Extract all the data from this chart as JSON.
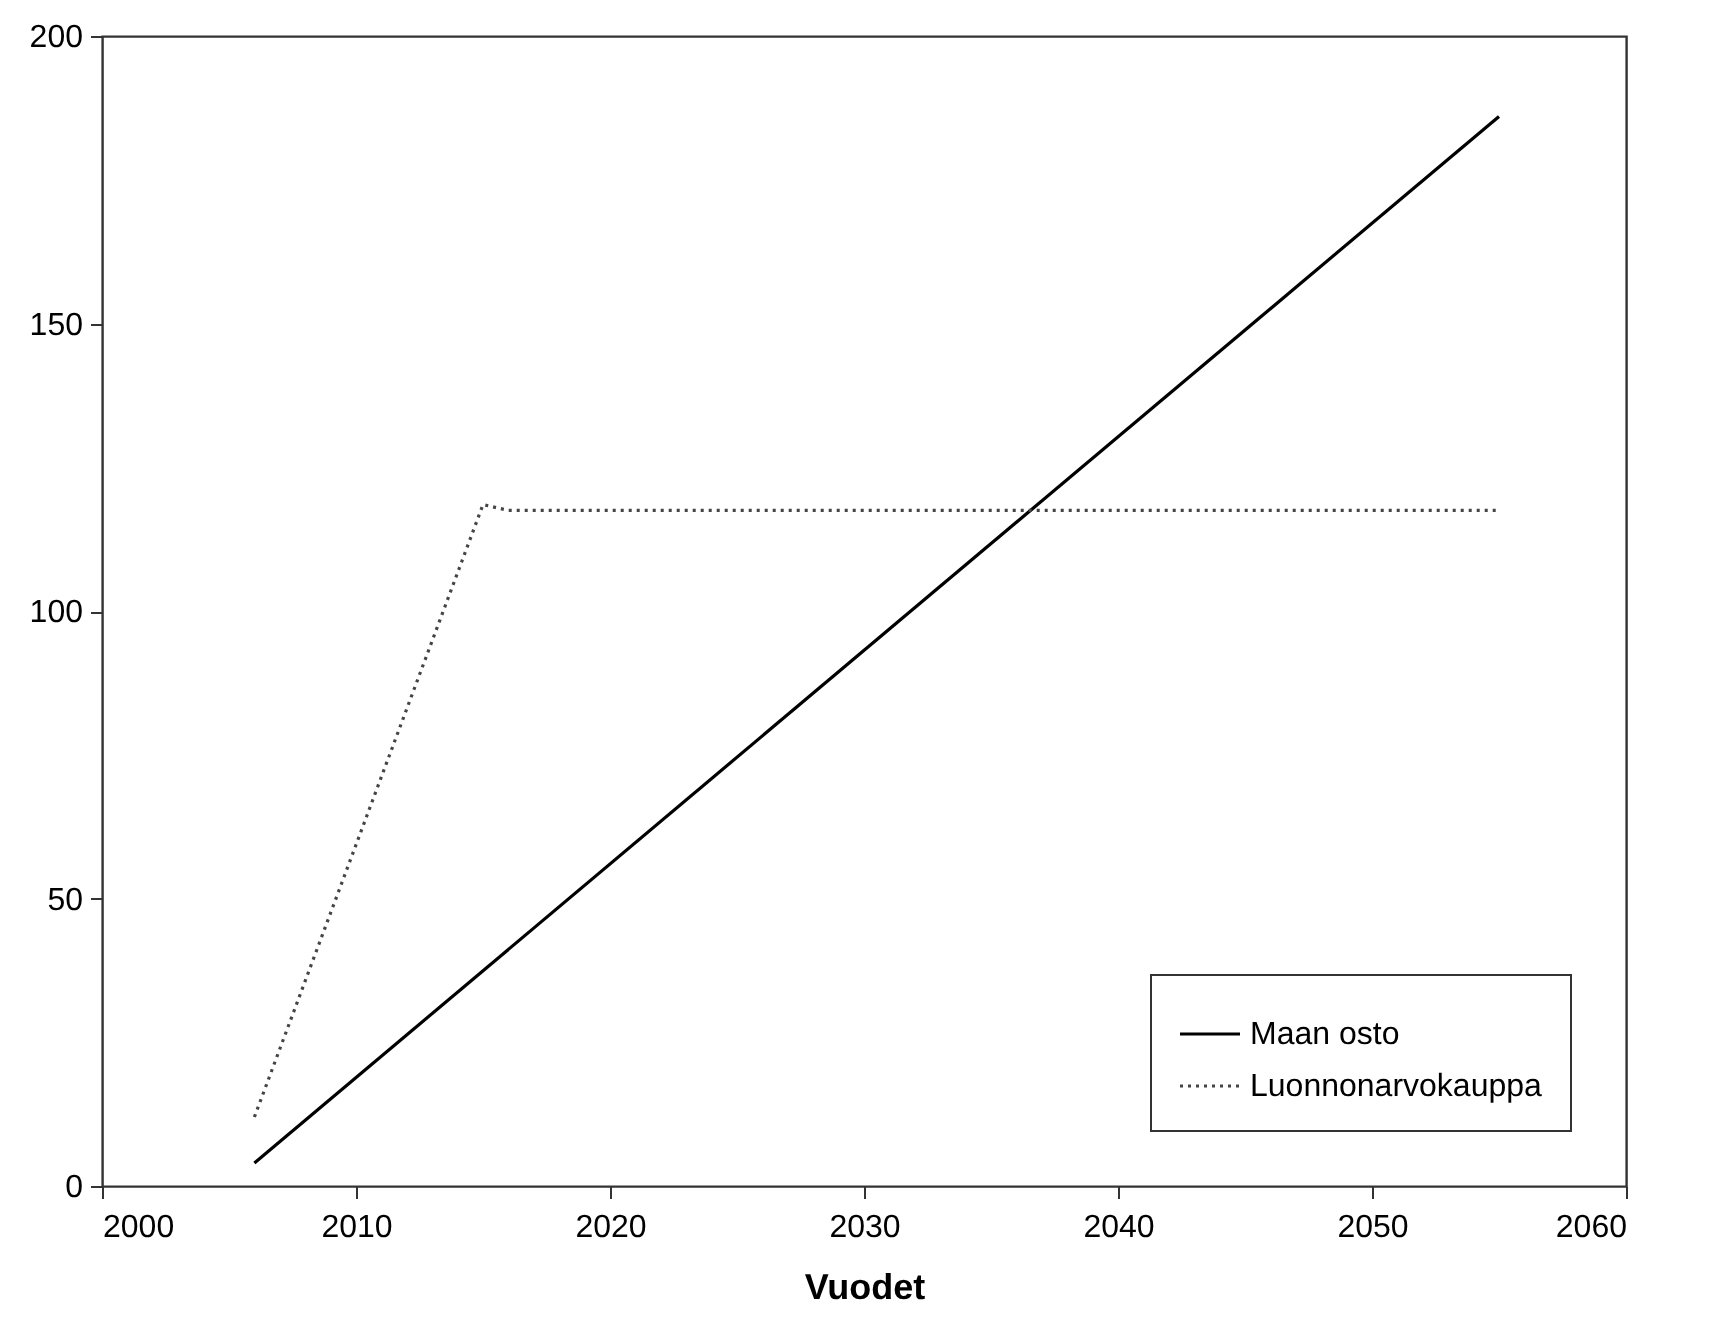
{
  "chart_data": {
    "type": "line",
    "xlabel": "Vuodet",
    "xlim": [
      2000,
      2060
    ],
    "xticks": [
      2000,
      2010,
      2020,
      2030,
      2040,
      2050,
      2060
    ],
    "ylim": [
      0,
      200
    ],
    "yticks": [
      0,
      50,
      100,
      150,
      200
    ],
    "grid": false,
    "legend": "bottom right",
    "marker": "none",
    "series": [
      {
        "name": "Maan osto",
        "color": "#000000",
        "line_style": "solid",
        "x": [
          2006,
          2055
        ],
        "values": [
          4,
          186
        ]
      },
      {
        "name": "Luonnonarvokauppa",
        "color": "#444444",
        "line_style": "dotted",
        "x": [
          2006,
          2015,
          2016,
          2055
        ],
        "values": [
          12,
          118.5,
          117.5,
          117.5
        ]
      }
    ]
  }
}
